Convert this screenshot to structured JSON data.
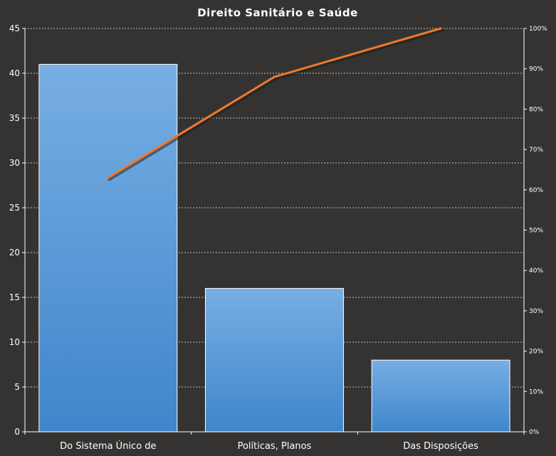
{
  "chart_data": {
    "type": "bar",
    "title": "Direito  Sanitário  e Saúde",
    "categories": [
      "Do Sistema Único de",
      "Políticas, Planos",
      "Das Disposições"
    ],
    "series": [
      {
        "type": "bar",
        "values": [
          41,
          16,
          8
        ]
      },
      {
        "type": "line",
        "axis": "right",
        "values": [
          63,
          88,
          100
        ]
      }
    ],
    "ylim": [
      0,
      45
    ],
    "yticks": [
      "0",
      "5",
      "10",
      "15",
      "20",
      "25",
      "30",
      "35",
      "40",
      "45"
    ],
    "y2lim": [
      0,
      100
    ],
    "y2ticks": [
      "0%",
      "10%",
      "20%",
      "30%",
      "40%",
      "50%",
      "60%",
      "70%",
      "80%",
      "90%",
      "100%"
    ],
    "grid": true,
    "colors": {
      "background": "#353331",
      "bar_top": "#78aee3",
      "bar_bottom": "#3f86cb",
      "line": "#ec7a30",
      "grid": "#bdbdbd",
      "axis": "#ffffff"
    }
  }
}
